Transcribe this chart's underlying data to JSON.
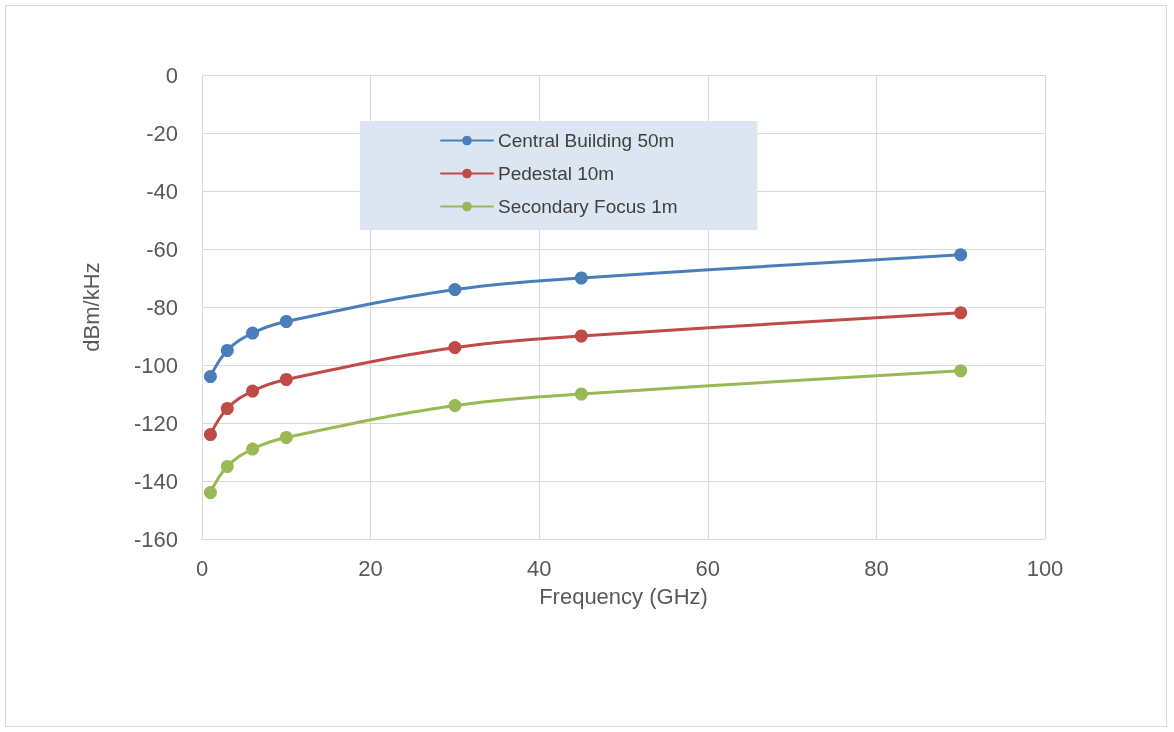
{
  "chart_data": {
    "type": "line",
    "xlabel": "Frequency (GHz)",
    "ylabel": "dBm/kHz",
    "x": [
      1,
      3,
      6,
      10,
      30,
      45,
      90
    ],
    "series": [
      {
        "name": "Central Building 50m",
        "color": "#4a7ebb",
        "values": [
          -104,
          -95,
          -89,
          -85,
          -74,
          -70,
          -62
        ]
      },
      {
        "name": "Pedestal 10m",
        "color": "#be4b48",
        "values": [
          -124,
          -115,
          -109,
          -105,
          -94,
          -90,
          -82
        ]
      },
      {
        "name": "Secondary Focus 1m",
        "color": "#98b954",
        "values": [
          -144,
          -135,
          -129,
          -125,
          -114,
          -110,
          -102
        ]
      }
    ],
    "xlim": [
      0,
      100
    ],
    "xticks": [
      0,
      20,
      40,
      60,
      80,
      100
    ],
    "ylim": [
      -160,
      0
    ],
    "yticks": [
      -160,
      -140,
      -120,
      -100,
      -80,
      -60,
      -40,
      -20,
      0
    ],
    "grid": true,
    "legend": "top",
    "marker": "circle",
    "line_style": "solid"
  }
}
